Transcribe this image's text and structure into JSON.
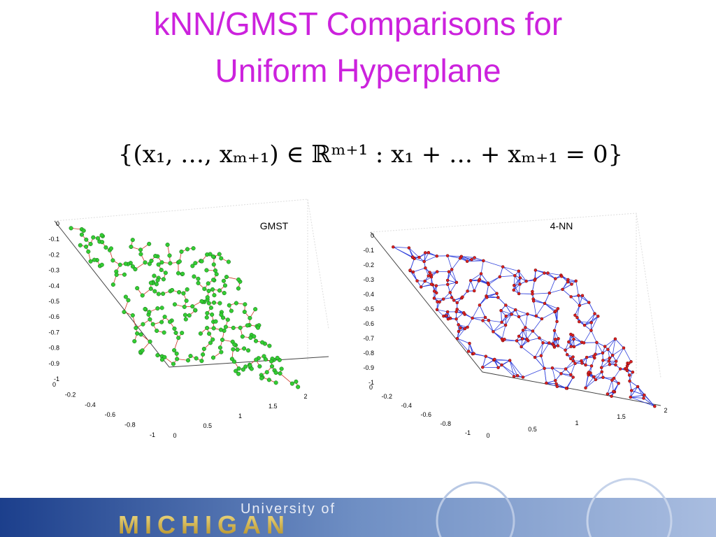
{
  "title": [
    "kNN/GMST Comparisons for",
    "Uniform Hyperplane"
  ],
  "formula": "{(x₁, …, xₘ₊₁) ∈ ℝᵐ⁺¹ : x₁ + … + xₘ₊₁ = 0}",
  "plots": [
    {
      "label": "GMST",
      "zticks": [
        "0",
        "-0.1",
        "-0.2",
        "-0.3",
        "-0.4",
        "-0.5",
        "-0.6",
        "-0.7",
        "-0.8",
        "-0.9",
        "-1"
      ],
      "yticks": [
        "0",
        "-0.2",
        "-0.4",
        "-0.6",
        "-0.8",
        "-1"
      ],
      "xticks": [
        "0",
        "0.5",
        "1",
        "1.5",
        "2"
      ]
    },
    {
      "label": "4-NN",
      "zticks": [
        "0",
        "-0.1",
        "-0.2",
        "-0.3",
        "-0.4",
        "-0.5",
        "-0.6",
        "-0.7",
        "-0.8",
        "-0.9",
        "-1"
      ],
      "yticks": [
        "0",
        "-0.2",
        "-0.4",
        "-0.6",
        "-0.8",
        "-1"
      ],
      "xticks": [
        "0",
        "0.5",
        "1",
        "1.5",
        "2"
      ]
    }
  ],
  "footer": {
    "line1": "University of",
    "line2": "MICHIGAN"
  }
}
